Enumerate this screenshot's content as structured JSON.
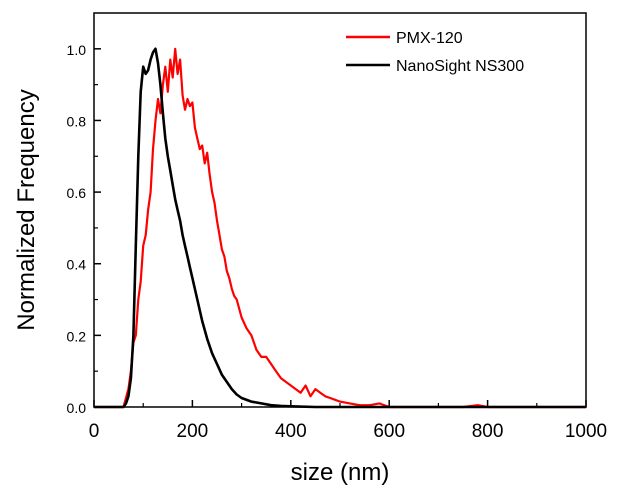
{
  "chart_data": {
    "type": "line",
    "title": "",
    "xlabel": "size (nm)",
    "ylabel": "Normalized Frequency",
    "xlim": [
      0,
      1000
    ],
    "ylim": [
      0,
      1.1
    ],
    "x_ticks": [
      0,
      200,
      400,
      600,
      800,
      1000
    ],
    "y_ticks": [
      0.0,
      0.2,
      0.4,
      0.6,
      0.8,
      1.0
    ],
    "x_tick_labels": [
      "0",
      "200",
      "400",
      "600",
      "800",
      "1000"
    ],
    "y_tick_labels": [
      "0.0",
      "0.2",
      "0.4",
      "0.6",
      "0.8",
      "1.0"
    ],
    "grid": false,
    "legend_position": "top-right",
    "series": [
      {
        "name": "PMX-120",
        "color": "#ff0000",
        "x": [
          0,
          60,
          70,
          75,
          80,
          85,
          90,
          95,
          100,
          105,
          110,
          115,
          120,
          125,
          130,
          135,
          140,
          145,
          150,
          155,
          160,
          165,
          170,
          175,
          180,
          185,
          190,
          195,
          200,
          205,
          210,
          215,
          220,
          225,
          230,
          235,
          240,
          245,
          250,
          255,
          260,
          265,
          270,
          275,
          280,
          285,
          290,
          300,
          310,
          320,
          330,
          340,
          350,
          360,
          370,
          380,
          390,
          400,
          410,
          420,
          430,
          440,
          450,
          460,
          470,
          480,
          490,
          500,
          520,
          540,
          560,
          580,
          600,
          620,
          650,
          700,
          750,
          780,
          800,
          850,
          900,
          950,
          1000
        ],
        "y": [
          0.0,
          0.0,
          0.05,
          0.1,
          0.18,
          0.2,
          0.3,
          0.35,
          0.45,
          0.48,
          0.55,
          0.6,
          0.72,
          0.8,
          0.86,
          0.82,
          0.9,
          0.95,
          0.88,
          0.97,
          0.92,
          1.0,
          0.93,
          0.97,
          0.87,
          0.83,
          0.86,
          0.84,
          0.85,
          0.78,
          0.75,
          0.72,
          0.73,
          0.68,
          0.71,
          0.65,
          0.6,
          0.57,
          0.52,
          0.48,
          0.44,
          0.42,
          0.38,
          0.36,
          0.33,
          0.31,
          0.3,
          0.25,
          0.22,
          0.2,
          0.16,
          0.14,
          0.14,
          0.12,
          0.1,
          0.08,
          0.07,
          0.06,
          0.05,
          0.04,
          0.06,
          0.03,
          0.05,
          0.04,
          0.03,
          0.025,
          0.02,
          0.015,
          0.01,
          0.005,
          0.005,
          0.01,
          0.0,
          0.0,
          0.0,
          0.0,
          0.0,
          0.005,
          0.0,
          0.0,
          0.0,
          0.0,
          0.0
        ]
      },
      {
        "name": "NanoSight NS300",
        "color": "#000000",
        "x": [
          0,
          60,
          65,
          70,
          75,
          80,
          85,
          90,
          95,
          100,
          105,
          110,
          115,
          120,
          125,
          130,
          135,
          140,
          145,
          150,
          155,
          160,
          165,
          170,
          175,
          180,
          185,
          190,
          195,
          200,
          210,
          220,
          230,
          240,
          250,
          260,
          270,
          280,
          290,
          300,
          320,
          340,
          360,
          380,
          400,
          450,
          500,
          600,
          700,
          800,
          900,
          1000
        ],
        "y": [
          0.0,
          0.0,
          0.01,
          0.03,
          0.08,
          0.2,
          0.45,
          0.7,
          0.88,
          0.95,
          0.93,
          0.94,
          0.97,
          0.99,
          1.0,
          0.96,
          0.9,
          0.82,
          0.75,
          0.7,
          0.66,
          0.62,
          0.58,
          0.55,
          0.52,
          0.48,
          0.45,
          0.42,
          0.39,
          0.36,
          0.3,
          0.24,
          0.19,
          0.15,
          0.12,
          0.09,
          0.07,
          0.05,
          0.035,
          0.025,
          0.015,
          0.01,
          0.005,
          0.003,
          0.002,
          0.0,
          0.0,
          0.0,
          0.0,
          0.0,
          0.0,
          0.0
        ]
      }
    ]
  }
}
